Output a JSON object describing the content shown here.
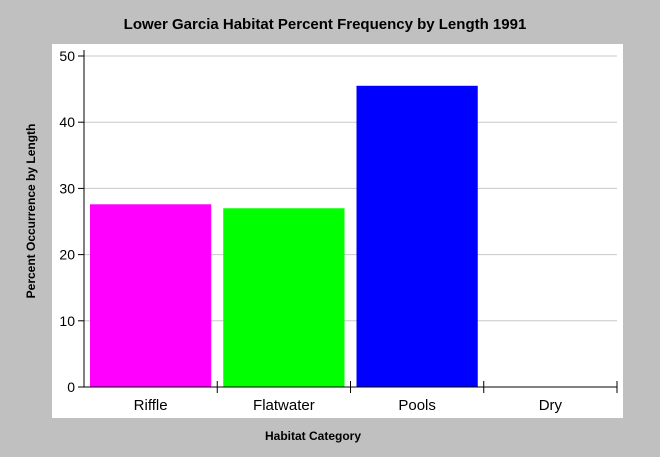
{
  "chart_data": {
    "type": "bar",
    "title": "Lower Garcia Habitat Percent Frequency by Length 1991",
    "xlabel": "Habitat Category",
    "ylabel": "Percent Occurrence by Length",
    "categories": [
      "Riffle",
      "Flatwater",
      "Pools",
      "Dry"
    ],
    "values": [
      27.6,
      27.0,
      45.5,
      0
    ],
    "colors": [
      "#ff00ff",
      "#00ff00",
      "#0000ff",
      "#808080"
    ],
    "ylim": [
      0,
      50
    ],
    "yticks": [
      "0",
      "10",
      "20",
      "30",
      "40",
      "50"
    ],
    "grid": true,
    "legend": "none"
  }
}
